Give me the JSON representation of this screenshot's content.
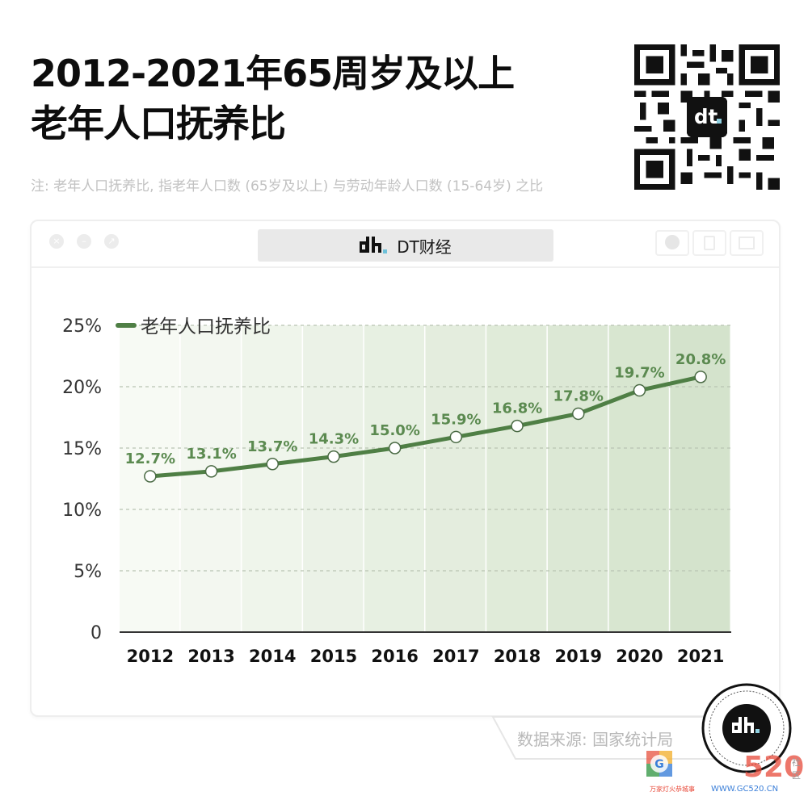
{
  "header": {
    "title_line1": "2012-2021年65周岁及以上",
    "title_line2": "老年人口抚养比",
    "note": "注: 老年人口抚养比, 指老年人口数 (65岁及以上) 与劳动年龄人口数 (15-64岁) 之比",
    "qr_code": "qr-code-icon"
  },
  "window": {
    "controls": [
      "close-icon",
      "minimize-icon",
      "expand-icon"
    ],
    "address_bar": {
      "logo": "dt-logo-icon",
      "label": "DT财经"
    },
    "right_buttons": [
      "record-icon",
      "share-icon",
      "window-icon"
    ]
  },
  "chart_data": {
    "type": "line",
    "title": "2012-2021年65周岁及以上老年人口抚养比",
    "subtitle": "注: 老年人口抚养比, 指老年人口数 (65岁及以上) 与劳动年龄人口数 (15-64岁) 之比",
    "xlabel": "",
    "ylabel": "",
    "categories": [
      "2012",
      "2013",
      "2014",
      "2015",
      "2016",
      "2017",
      "2018",
      "2019",
      "2020",
      "2021"
    ],
    "series": [
      {
        "name": "老年人口抚养比",
        "color": "#4f7f45",
        "values": [
          12.7,
          13.1,
          13.7,
          14.3,
          15.0,
          15.9,
          16.8,
          17.8,
          19.7,
          20.8
        ],
        "labels": [
          "12.7%",
          "13.1%",
          "13.7%",
          "14.3%",
          "15.0%",
          "15.9%",
          "16.8%",
          "17.8%",
          "19.7%",
          "20.8%"
        ]
      }
    ],
    "ylim": [
      0,
      25
    ],
    "yticks": [
      0,
      5,
      10,
      15,
      20,
      25
    ],
    "ytick_labels": [
      "0",
      "5%",
      "10%",
      "15%",
      "20%",
      "25%"
    ],
    "grid": "horizontal dashed",
    "legend_position": "top-left",
    "background": "column gradient light to darker green"
  },
  "footer": {
    "source": "数据来源: 国家统计局",
    "badge": "dt-logo-icon",
    "watermark_site": "WWW.GC520.CN",
    "watermark_slogan": "万家灯火恭城事",
    "watermark_side": "社区"
  },
  "colors": {
    "line": "#4f7f45",
    "label": "#5b8a50",
    "title": "#0d0d0d",
    "note": "#c2c2c2",
    "axis": "#333333",
    "col_start": "#f7faf4",
    "col_end": "#d4e3cc"
  }
}
